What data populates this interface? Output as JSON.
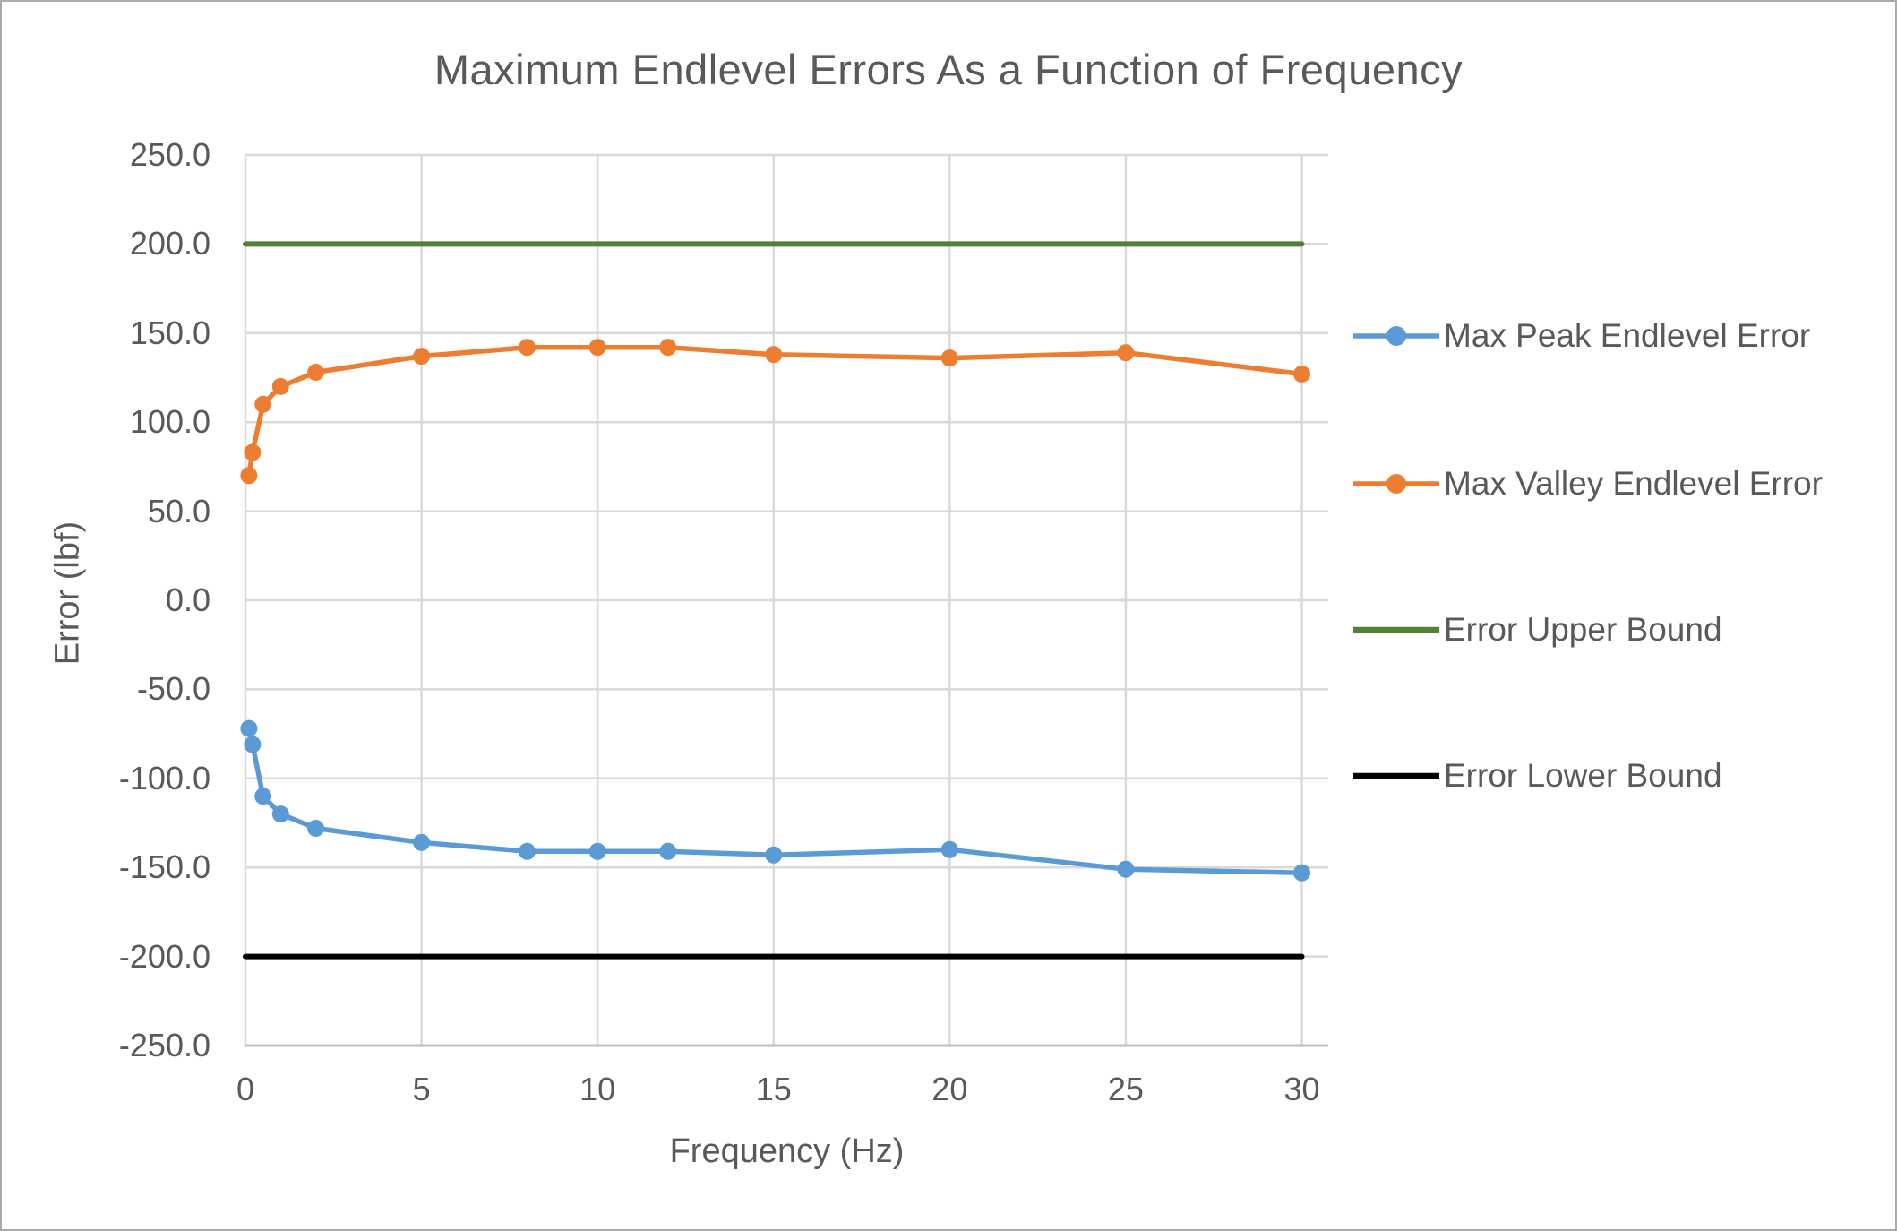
{
  "chart_data": {
    "type": "line",
    "title": "Maximum Endlevel Errors As a Function of Frequency",
    "xlabel": "Frequency (Hz)",
    "ylabel": "Error (lbf)",
    "xlim": [
      0,
      30.75
    ],
    "ylim": [
      -250,
      250
    ],
    "grid": true,
    "legend_position": "right",
    "x_ticks": [
      0,
      5,
      10,
      15,
      20,
      25,
      30
    ],
    "x_tick_labels": [
      "0",
      "5",
      "10",
      "15",
      "20",
      "25",
      "30"
    ],
    "y_ticks": [
      250,
      200,
      150,
      100,
      50,
      0,
      -50,
      -100,
      -150,
      -200,
      -250
    ],
    "y_tick_labels": [
      "250.0",
      "200.0",
      "150.0",
      "100.0",
      "50.0",
      "0.0",
      "-50.0",
      "-100.0",
      "-150.0",
      "-200.0",
      "-250.0"
    ],
    "x": [
      0.1,
      0.2,
      0.5,
      1,
      2,
      5,
      8,
      10,
      12,
      15,
      20,
      25,
      30
    ],
    "series": [
      {
        "name": "Max Peak Endlevel Error",
        "color": "#5B9BD5",
        "marker": "circle",
        "values": [
          -72,
          -81,
          -110,
          -120,
          -128,
          -136,
          -141,
          -141,
          -141,
          -143,
          -140,
          -151,
          -153
        ]
      },
      {
        "name": "Max Valley Endlevel Error",
        "color": "#ED7D31",
        "marker": "circle",
        "values": [
          70,
          83,
          110,
          120,
          128,
          137,
          142,
          142,
          142,
          138,
          136,
          139,
          127
        ]
      },
      {
        "name": "Error Upper Bound",
        "color": "#538135",
        "marker": "none",
        "x": [
          0,
          30
        ],
        "values": [
          200,
          200
        ]
      },
      {
        "name": "Error Lower Bound",
        "color": "#000000",
        "marker": "none",
        "x": [
          0,
          30
        ],
        "values": [
          -200,
          -200
        ]
      }
    ]
  },
  "colors": {
    "text": "#595959",
    "gridline": "#D9D9D9",
    "axis_line": "#BFBFBF",
    "background": "#FFFFFF",
    "frame_border": "#ABABAB"
  }
}
